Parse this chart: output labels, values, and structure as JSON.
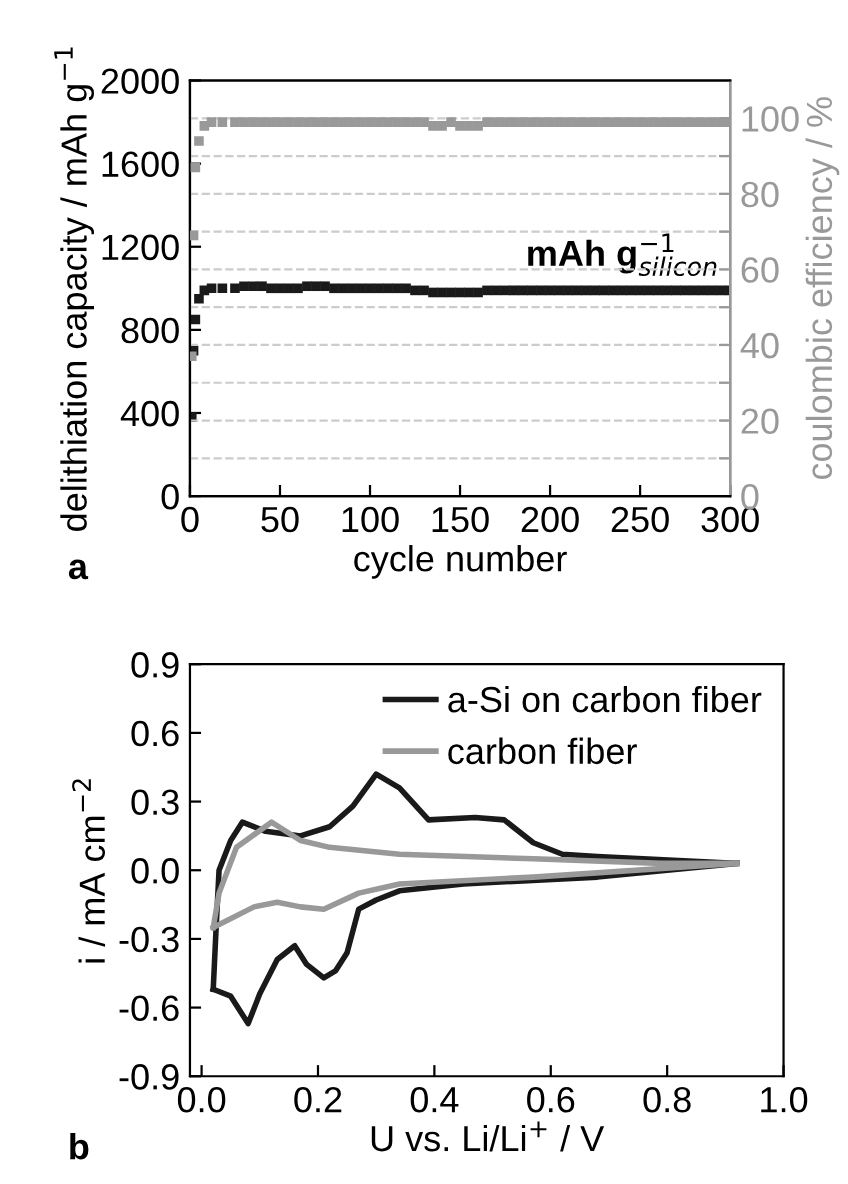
{
  "chart_data": [
    {
      "type": "scatter",
      "xlabel": "cycle number",
      "ylabel": "delithiation capacity / mAh g$^{−1}$",
      "y2label": "coulombic efficiency / %",
      "annotations": [
        "mAh g$^{−1}$$_{silicon}$",
        "a"
      ],
      "xlim": [
        0,
        300
      ],
      "xticks": [
        0,
        50,
        100,
        150,
        200,
        250,
        300
      ],
      "ylim": [
        0,
        2000
      ],
      "yticks": [
        0,
        400,
        800,
        1200,
        1600,
        2000
      ],
      "y2lim": [
        0,
        110
      ],
      "y2ticks": [
        0,
        {
          "value": 10,
          "label": null
        },
        20,
        {
          "value": 30,
          "label": null
        },
        40,
        {
          "value": 50,
          "label": null
        },
        60,
        {
          "value": 70,
          "label": null
        },
        80,
        {
          "value": 90,
          "label": null
        },
        100
      ],
      "grid": true,
      "marker": "square",
      "series": [
        {
          "color": "#1a1a1a",
          "x": [
            1,
            2,
            3,
            5,
            8,
            12,
            18,
            25,
            30,
            35,
            40,
            45,
            50,
            55,
            60,
            65,
            70,
            75,
            80,
            85,
            90,
            95,
            100,
            105,
            110,
            115,
            120,
            125,
            130,
            135,
            140,
            145,
            150,
            155,
            160,
            165,
            170,
            175,
            180,
            185,
            190,
            195,
            200,
            205,
            210,
            215,
            220,
            225,
            230,
            235,
            240,
            245,
            250,
            255,
            260,
            265,
            270,
            275,
            280,
            285,
            290,
            295,
            300
          ],
          "values": [
            380,
            700,
            850,
            950,
            990,
            1000,
            1000,
            1000,
            1010,
            1010,
            1010,
            1000,
            1000,
            1000,
            1000,
            1010,
            1010,
            1010,
            1000,
            1000,
            1000,
            1000,
            1000,
            1000,
            1000,
            1000,
            1000,
            990,
            990,
            980,
            980,
            980,
            980,
            980,
            980,
            990,
            990,
            990,
            990,
            990,
            990,
            990,
            990,
            990,
            990,
            990,
            990,
            990,
            990,
            990,
            990,
            990,
            990,
            990,
            990,
            990,
            990,
            990,
            990,
            990,
            990,
            990,
            990
          ]
        },
        {
          "color": "#999999",
          "axis": "y2",
          "x": [
            1,
            2,
            3,
            5,
            8,
            12,
            18,
            25,
            30,
            35,
            40,
            45,
            50,
            55,
            60,
            65,
            70,
            75,
            80,
            85,
            90,
            95,
            100,
            105,
            110,
            115,
            120,
            125,
            130,
            135,
            140,
            145,
            150,
            155,
            160,
            165,
            170,
            175,
            180,
            185,
            190,
            195,
            200,
            205,
            210,
            215,
            220,
            225,
            230,
            235,
            240,
            245,
            250,
            255,
            260,
            265,
            270,
            275,
            280,
            285,
            290,
            295,
            300
          ],
          "values": [
            37,
            69,
            87,
            94,
            98,
            99,
            99,
            99,
            99,
            99,
            99,
            99,
            99,
            99,
            99,
            99,
            99,
            99,
            99,
            99,
            99,
            99,
            99,
            99,
            99,
            99,
            99,
            99,
            99,
            98,
            98,
            99,
            98,
            98,
            98,
            99,
            99,
            99,
            99,
            99,
            99,
            99,
            99,
            99,
            99,
            99,
            99,
            99,
            99,
            99,
            99,
            99,
            99,
            99,
            99,
            99,
            99,
            99,
            99,
            99,
            99,
            99,
            99
          ]
        }
      ]
    },
    {
      "type": "line",
      "xlabel": "U vs. Li/Li$^{+}$ / V",
      "ylabel": "i / mA cm$^{−2}$",
      "annotations": [
        "b"
      ],
      "xlim": [
        -0.02,
        1.0
      ],
      "xticks": [
        {
          "value": 0,
          "label": "0.0"
        },
        0.2,
        0.4,
        0.6,
        0.8,
        {
          "value": 1,
          "label": "1.0"
        }
      ],
      "ylim": [
        -0.9,
        0.9
      ],
      "yticks": [
        -0.9,
        -0.6,
        -0.3,
        {
          "value": 0,
          "label": "0.0"
        },
        0.3,
        0.6,
        0.9
      ],
      "legend": "top right",
      "grid": false,
      "series": [
        {
          "name": "a-Si on carbon fiber",
          "color": "#1a1a1a",
          "x": [
            0.02,
            0.025,
            0.03,
            0.05,
            0.07,
            0.11,
            0.17,
            0.22,
            0.26,
            0.3,
            0.34,
            0.39,
            0.47,
            0.52,
            0.57,
            0.62,
            0.68,
            0.92
          ],
          "values": [
            -0.52,
            -0.25,
            0.0,
            0.13,
            0.21,
            0.17,
            0.15,
            0.19,
            0.28,
            0.42,
            0.36,
            0.22,
            0.23,
            0.22,
            0.12,
            0.07,
            0.06,
            0.03
          ]
        },
        {
          "color": "#1a1a1a",
          "x": [
            0.92,
            0.68,
            0.45,
            0.34,
            0.3,
            0.27,
            0.25,
            0.23,
            0.21,
            0.18,
            0.16,
            0.13,
            0.1,
            0.08,
            0.05,
            0.02
          ],
          "values": [
            0.03,
            -0.03,
            -0.06,
            -0.09,
            -0.13,
            -0.17,
            -0.36,
            -0.44,
            -0.47,
            -0.41,
            -0.33,
            -0.39,
            -0.54,
            -0.67,
            -0.55,
            -0.52
          ]
        },
        {
          "name": "carbon fiber",
          "color": "#999999",
          "x": [
            0.92,
            0.79,
            0.57,
            0.34,
            0.22,
            0.17,
            0.12,
            0.06,
            0.03,
            0.02
          ],
          "values": [
            0.03,
            0.03,
            0.05,
            0.07,
            0.1,
            0.13,
            0.21,
            0.1,
            -0.1,
            -0.25
          ]
        },
        {
          "color": "#999999",
          "x": [
            0.02,
            0.09,
            0.13,
            0.17,
            0.21,
            0.27,
            0.34,
            0.57,
            0.92
          ],
          "values": [
            -0.25,
            -0.16,
            -0.14,
            -0.16,
            -0.17,
            -0.1,
            -0.06,
            -0.03,
            0.03
          ]
        }
      ]
    }
  ]
}
